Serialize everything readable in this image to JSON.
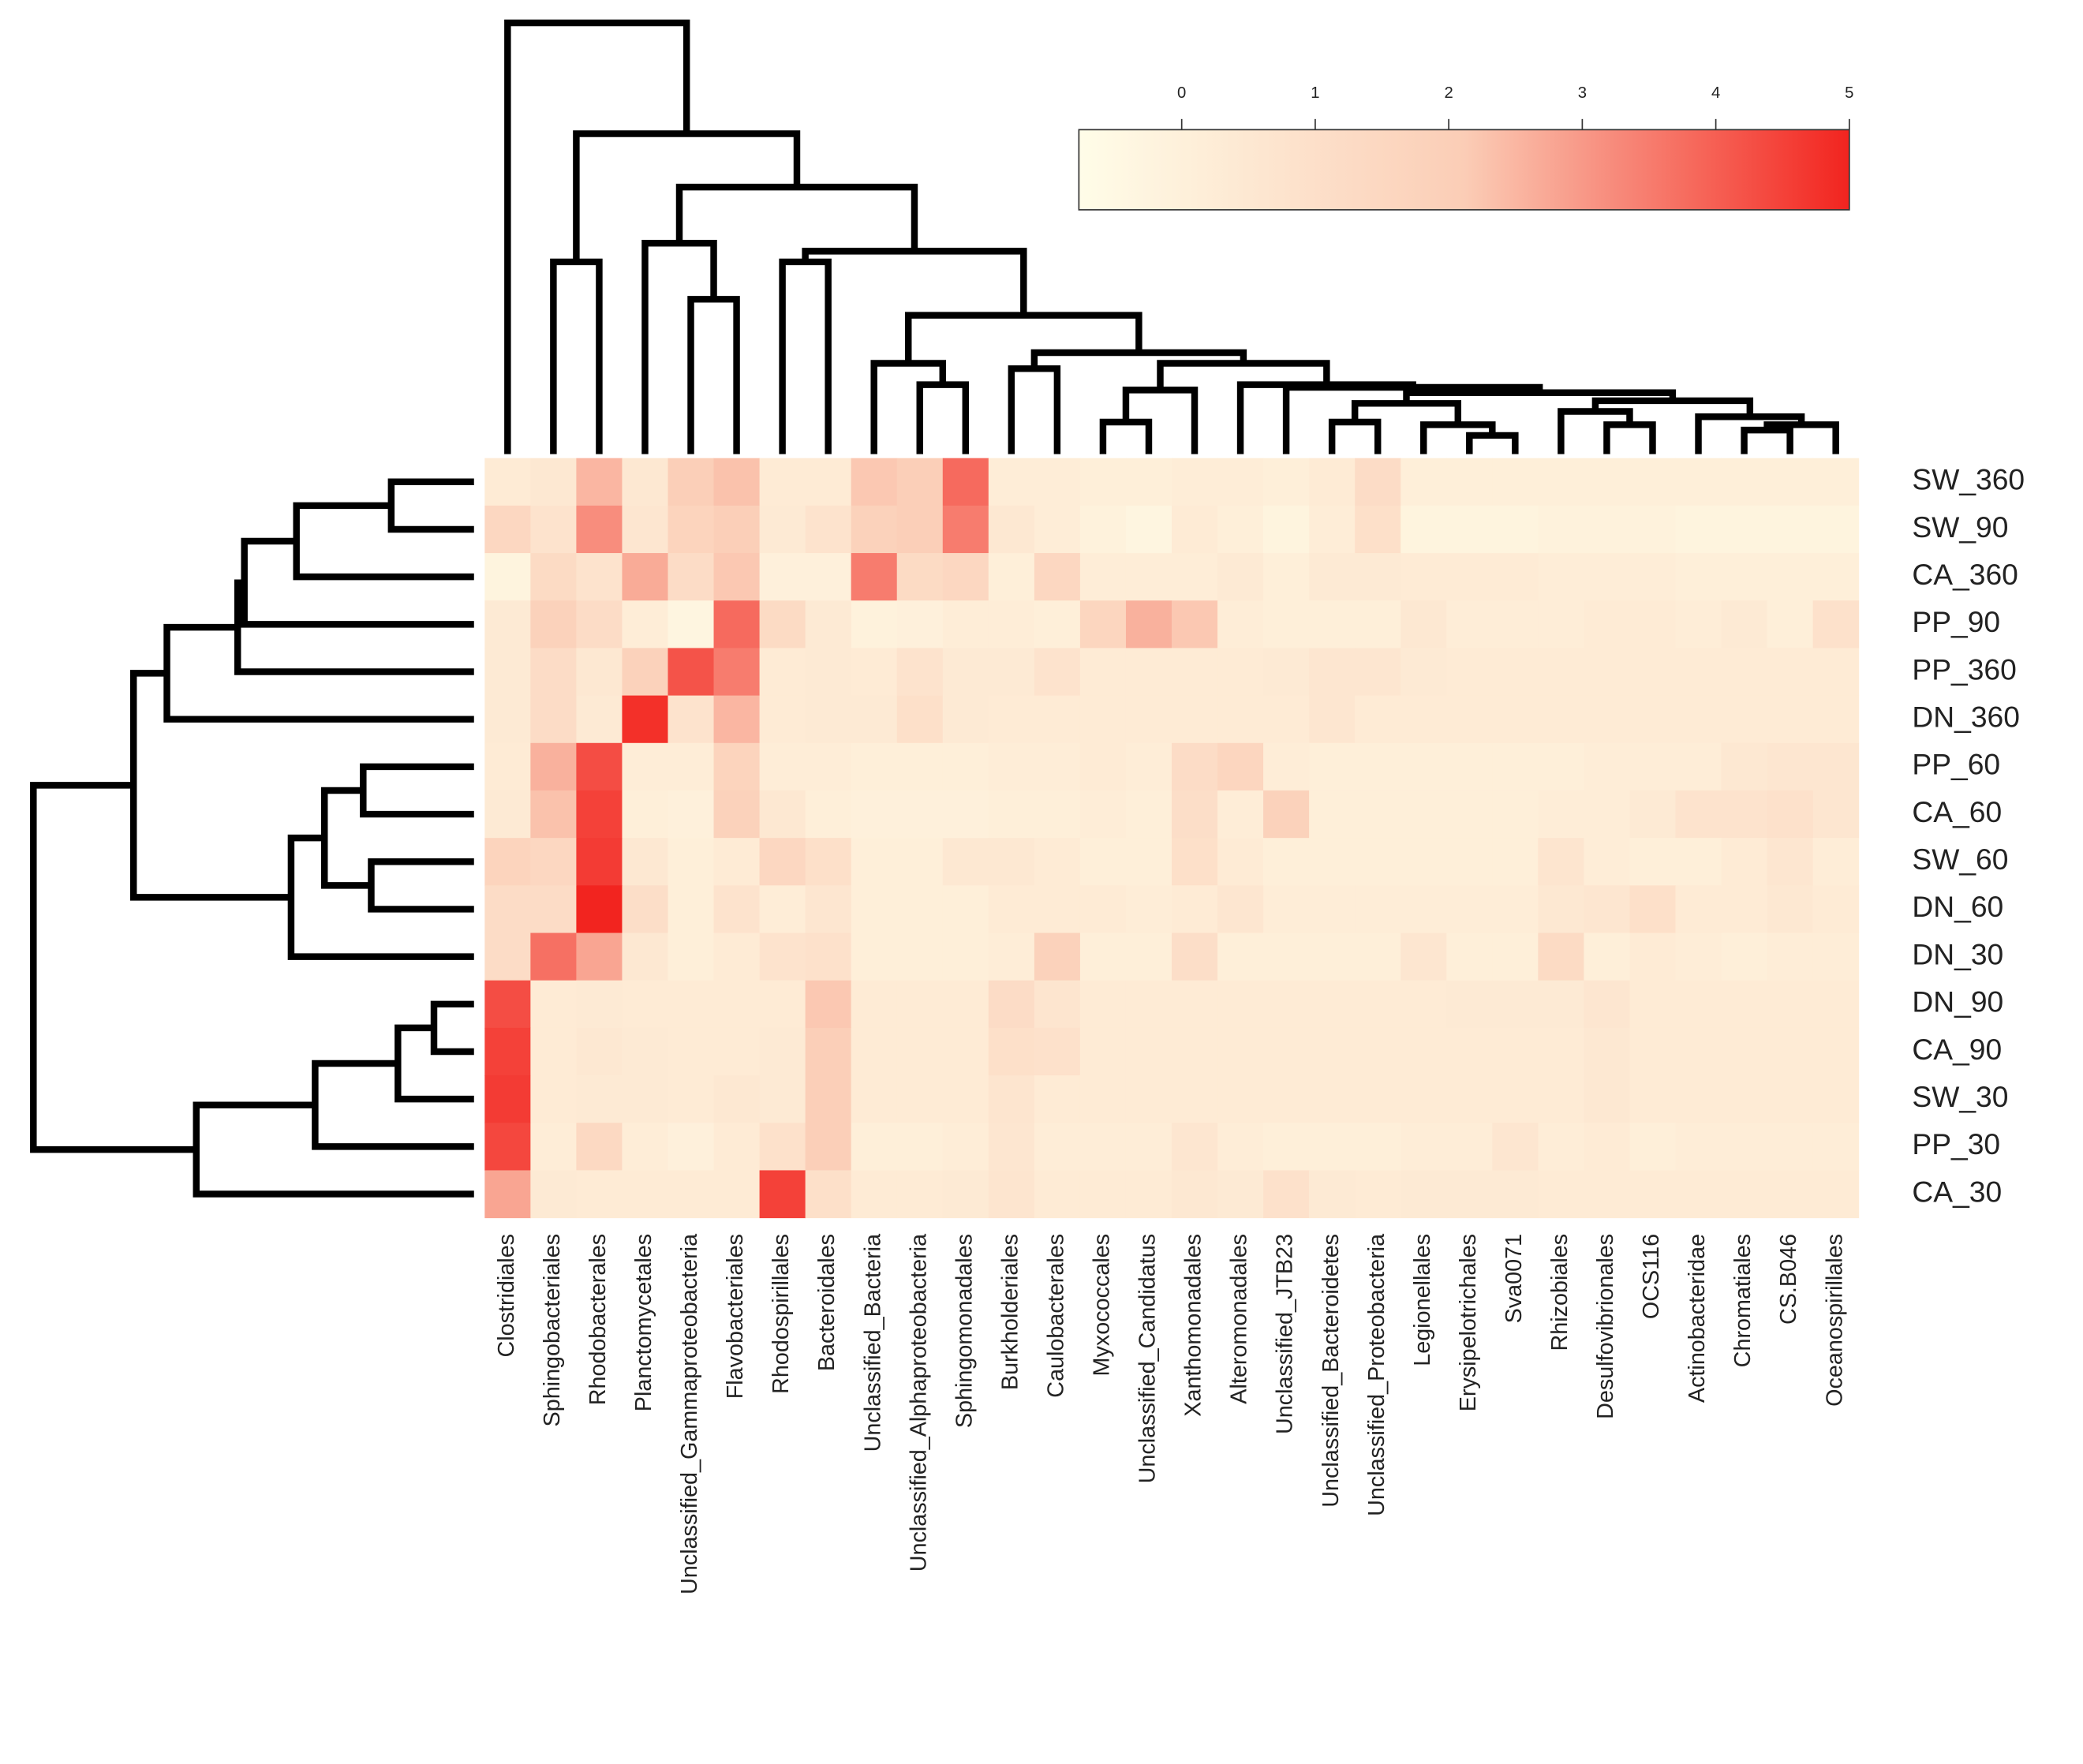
{
  "chart_data": {
    "type": "heatmap",
    "columns": [
      "Clostridiales",
      "Sphingobacteriales",
      "Rhodobacterales",
      "Planctomycetales",
      "Unclassified_Gammaproteobacteria",
      "Flavobacteriales",
      "Rhodospirillales",
      "Bacteroidales",
      "Unclassified_Bacteria",
      "Unclassified_Alphaproteobacteria",
      "Sphingomonadales",
      "Burkholderiales",
      "Caulobacterales",
      "Myxococcales",
      "Unclassified_Candidatus",
      "Xanthomonadales",
      "Alteromonadales",
      "Unclassified_JTB23",
      "Unclassified_Bacteroidetes",
      "Unclassified_Proteobacteria",
      "Legionellales",
      "Erysipelotrichales",
      "Sva0071",
      "Rhizobiales",
      "Desulfovibrionales",
      "OCS116",
      "Actinobacteridae",
      "Chromatiales",
      "CS.B046",
      "Oceanospirillales"
    ],
    "rows": [
      "SW_360",
      "SW_90",
      "CA_360",
      "PP_90",
      "PP_360",
      "DN_360",
      "PP_60",
      "CA_60",
      "SW_60",
      "DN_60",
      "DN_30",
      "DN_90",
      "CA_90",
      "SW_30",
      "PP_30",
      "CA_30"
    ],
    "values": [
      [
        0.3,
        0.5,
        2.5,
        0.5,
        2.0,
        2.3,
        0.3,
        0.3,
        2.2,
        2.0,
        3.8,
        0.2,
        0.2,
        0.1,
        0.1,
        0.2,
        0.2,
        0.1,
        0.3,
        1.2,
        0.1,
        0.1,
        0.1,
        0.1,
        0.1,
        0.1,
        0.1,
        0.1,
        0.1,
        0.1
      ],
      [
        1.5,
        0.8,
        3.2,
        0.6,
        1.7,
        2.0,
        0.4,
        0.8,
        1.8,
        2.0,
        3.5,
        0.5,
        0.2,
        -0.1,
        -0.3,
        0.3,
        0.1,
        -0.2,
        0.2,
        1.0,
        -0.2,
        -0.2,
        -0.2,
        -0.1,
        -0.1,
        -0.1,
        -0.2,
        -0.2,
        -0.2,
        -0.2
      ],
      [
        -0.2,
        1.3,
        0.8,
        2.7,
        1.2,
        2.2,
        0.0,
        0.0,
        3.5,
        1.3,
        1.5,
        0.1,
        1.5,
        0.2,
        0.2,
        0.2,
        0.4,
        0.1,
        0.4,
        0.4,
        0.3,
        0.3,
        0.3,
        0.2,
        0.2,
        0.2,
        0.1,
        0.1,
        0.1,
        0.1
      ],
      [
        0.4,
        1.8,
        1.2,
        0.2,
        -0.3,
        3.8,
        1.3,
        0.4,
        -0.1,
        0.0,
        0.2,
        0.2,
        0.1,
        1.6,
        2.6,
        2.2,
        0.2,
        0.1,
        0.1,
        0.1,
        0.5,
        0.2,
        0.2,
        0.2,
        0.3,
        0.3,
        0.2,
        0.4,
        0.1,
        0.9
      ],
      [
        0.4,
        1.2,
        0.5,
        1.8,
        4.2,
        3.5,
        0.3,
        0.4,
        0.3,
        0.8,
        0.4,
        0.4,
        0.8,
        0.3,
        0.3,
        0.3,
        0.3,
        0.4,
        0.6,
        0.6,
        0.4,
        0.3,
        0.3,
        0.3,
        0.3,
        0.3,
        0.3,
        0.3,
        0.3,
        0.3
      ],
      [
        0.4,
        1.2,
        0.4,
        4.8,
        0.8,
        2.5,
        0.3,
        0.4,
        0.4,
        1.0,
        0.4,
        0.3,
        0.3,
        0.3,
        0.3,
        0.3,
        0.3,
        0.3,
        0.6,
        0.3,
        0.3,
        0.3,
        0.3,
        0.3,
        0.3,
        0.3,
        0.3,
        0.3,
        0.3,
        0.3
      ],
      [
        0.3,
        2.6,
        4.3,
        0.2,
        0.2,
        1.7,
        0.2,
        0.2,
        0.1,
        0.1,
        0.1,
        0.2,
        0.2,
        0.3,
        0.2,
        1.2,
        1.6,
        0.2,
        0.1,
        0.1,
        0.1,
        0.1,
        0.1,
        0.1,
        0.2,
        0.2,
        0.2,
        0.5,
        0.6,
        0.6
      ],
      [
        0.4,
        2.3,
        4.5,
        0.1,
        0.0,
        1.8,
        0.5,
        0.1,
        0.0,
        0.0,
        0.0,
        0.1,
        0.1,
        0.2,
        0.1,
        1.1,
        0.2,
        1.8,
        0.1,
        0.1,
        0.1,
        0.1,
        0.1,
        0.2,
        0.2,
        0.4,
        0.8,
        0.8,
        0.9,
        0.6
      ],
      [
        1.7,
        1.5,
        4.6,
        0.5,
        0.1,
        0.3,
        1.5,
        1.0,
        0.1,
        0.1,
        0.5,
        0.5,
        0.3,
        0.1,
        0.1,
        1.0,
        0.3,
        0.1,
        0.1,
        0.1,
        0.1,
        0.1,
        0.1,
        0.7,
        0.2,
        0.1,
        0.1,
        0.3,
        0.6,
        0.2
      ],
      [
        1.2,
        1.2,
        5.0,
        1.1,
        0.1,
        0.8,
        0.2,
        0.6,
        0.1,
        0.1,
        0.1,
        0.3,
        0.3,
        0.3,
        0.2,
        0.3,
        0.6,
        0.2,
        0.2,
        0.2,
        0.2,
        0.2,
        0.2,
        0.5,
        0.6,
        1.0,
        0.3,
        0.3,
        0.5,
        0.3
      ],
      [
        1.2,
        3.7,
        2.8,
        0.5,
        0.1,
        0.3,
        0.8,
        0.9,
        0.1,
        0.1,
        0.1,
        0.2,
        1.8,
        0.1,
        0.1,
        1.1,
        0.1,
        0.1,
        0.1,
        0.1,
        0.6,
        0.1,
        0.1,
        1.3,
        0.1,
        0.3,
        0.2,
        0.1,
        0.2,
        0.2
      ],
      [
        4.3,
        0.3,
        0.4,
        0.3,
        0.3,
        0.3,
        0.3,
        2.2,
        0.3,
        0.3,
        0.3,
        1.2,
        0.7,
        0.3,
        0.3,
        0.3,
        0.3,
        0.3,
        0.3,
        0.3,
        0.3,
        0.4,
        0.4,
        0.4,
        0.6,
        0.3,
        0.3,
        0.3,
        0.3,
        0.3
      ],
      [
        4.5,
        0.3,
        0.5,
        0.4,
        0.3,
        0.3,
        0.4,
        2.0,
        0.3,
        0.3,
        0.3,
        1.0,
        0.9,
        0.3,
        0.3,
        0.3,
        0.3,
        0.3,
        0.3,
        0.3,
        0.3,
        0.3,
        0.3,
        0.3,
        0.5,
        0.3,
        0.3,
        0.3,
        0.3,
        0.3
      ],
      [
        4.6,
        0.3,
        0.4,
        0.4,
        0.3,
        0.5,
        0.4,
        2.0,
        0.3,
        0.3,
        0.3,
        0.7,
        0.3,
        0.3,
        0.3,
        0.3,
        0.3,
        0.3,
        0.3,
        0.3,
        0.3,
        0.3,
        0.3,
        0.3,
        0.5,
        0.3,
        0.3,
        0.3,
        0.3,
        0.3
      ],
      [
        4.4,
        0.2,
        1.4,
        0.2,
        0.0,
        0.3,
        0.9,
        2.0,
        0.1,
        0.1,
        0.2,
        0.6,
        0.2,
        0.2,
        0.2,
        0.6,
        0.2,
        0.1,
        0.1,
        0.1,
        0.2,
        0.2,
        0.6,
        0.2,
        0.3,
        0.1,
        0.2,
        0.2,
        0.2,
        0.2
      ],
      [
        2.8,
        0.4,
        0.3,
        0.3,
        0.3,
        0.3,
        4.5,
        1.0,
        0.3,
        0.3,
        0.4,
        0.7,
        0.3,
        0.3,
        0.3,
        0.5,
        0.4,
        0.9,
        0.4,
        0.3,
        0.4,
        0.4,
        0.4,
        0.3,
        0.3,
        0.3,
        0.3,
        0.3,
        0.3,
        0.3
      ]
    ],
    "zlim": [
      -0.77,
      5
    ],
    "zticks": [
      0,
      1,
      2,
      3,
      4,
      5
    ],
    "colorscale": [
      "#fffde8",
      "#fbcdb6",
      "#f2241f"
    ]
  }
}
